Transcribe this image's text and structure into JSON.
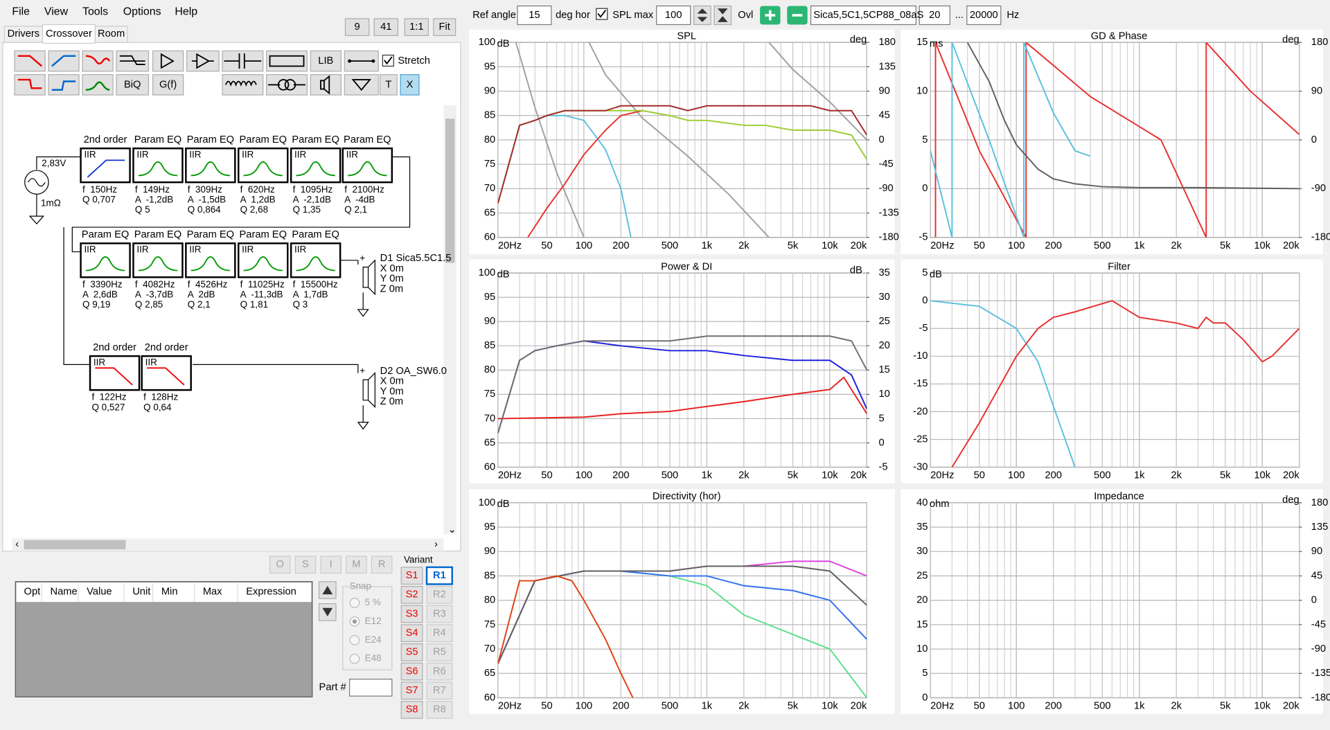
{
  "menu": [
    "File",
    "View",
    "Tools",
    "Options",
    "Help"
  ],
  "tabs": [
    "Drivers",
    "Crossover",
    "Room"
  ],
  "view_buttons": [
    9,
    41,
    "1:1",
    "Fit"
  ],
  "toolbar": {
    "lib": "LIB",
    "biq": "BiQ",
    "gf": "G(f)",
    "t": "T",
    "x": "X",
    "stretch": "Stretch"
  },
  "schematic": {
    "source_voltage": "2,83V",
    "source_resistance": "1mΩ",
    "blocks": [
      {
        "title": "2nd order",
        "type": "IIR",
        "lines": [
          "f  150Hz",
          "Q 0,707"
        ]
      },
      {
        "title": "Param EQ",
        "type": "IIR",
        "lines": [
          "f  149Hz",
          "A  -1,2dB",
          "Q 5"
        ]
      },
      {
        "title": "Param EQ",
        "type": "IIR",
        "lines": [
          "f  309Hz",
          "A  -1,5dB",
          "Q 0,864"
        ]
      },
      {
        "title": "Param EQ",
        "type": "IIR",
        "lines": [
          "f  620Hz",
          "A  1,2dB",
          "Q 2,68"
        ]
      },
      {
        "title": "Param EQ",
        "type": "IIR",
        "lines": [
          "f  1095Hz",
          "A  -2,1dB",
          "Q 1,35"
        ]
      },
      {
        "title": "Param EQ",
        "type": "IIR",
        "lines": [
          "f  2100Hz",
          "A  -4dB",
          "Q 2,1"
        ]
      },
      {
        "title": "Param EQ",
        "type": "IIR",
        "lines": [
          "f  3390Hz",
          "A  2,6dB",
          "Q 9,19"
        ]
      },
      {
        "title": "Param EQ",
        "type": "IIR",
        "lines": [
          "f  4082Hz",
          "A  -3,7dB",
          "Q 2,85"
        ]
      },
      {
        "title": "Param EQ",
        "type": "IIR",
        "lines": [
          "f  4526Hz",
          "A  2dB",
          "Q 2,1"
        ]
      },
      {
        "title": "Param EQ",
        "type": "IIR",
        "lines": [
          "f  11025Hz",
          "A  -11,3dB",
          "Q 1,81"
        ]
      },
      {
        "title": "Param EQ",
        "type": "IIR",
        "lines": [
          "f  15500Hz",
          "A  1,7dB",
          "Q 3"
        ]
      },
      {
        "title": "2nd order",
        "type": "IIR",
        "lines": [
          "f  122Hz",
          "Q 0,527"
        ]
      },
      {
        "title": "2nd order",
        "type": "IIR",
        "lines": [
          "f  128Hz",
          "Q 0,64"
        ]
      }
    ],
    "drivers": [
      {
        "name": "D1 Sica5.5C1.5",
        "lines": [
          "X 0m",
          "Y 0m",
          "Z 0m"
        ]
      },
      {
        "name": "D2 OA_SW6.0",
        "lines": [
          "X 0m",
          "Y 0m",
          "Z 0m"
        ]
      }
    ]
  },
  "nav_buttons": [
    "O",
    "S",
    "I",
    "M",
    "R"
  ],
  "variant": {
    "label": "Variant",
    "s": [
      "S1",
      "S2",
      "S3",
      "S4",
      "S5",
      "S6",
      "S7",
      "S8"
    ],
    "r": [
      "R1",
      "R2",
      "R3",
      "R4",
      "R5",
      "R6",
      "R7",
      "R8"
    ]
  },
  "table_headers": [
    "Opt",
    "Name",
    "Value",
    "Unit",
    "Min",
    "Max",
    "Expression"
  ],
  "snap": {
    "label": "Snap",
    "options": [
      "5 %",
      "E12",
      "E24",
      "E48"
    ]
  },
  "part_label": "Part #",
  "top_bar": {
    "ref_angle_label": "Ref angle",
    "ref_angle": 15,
    "deg_hor": "deg hor",
    "spl_max_label": "SPL max",
    "spl_max": 100,
    "ovl": "Ovl",
    "driver_file": "Sica5,5C1,5CP88_08aS",
    "f_min": 20,
    "ellipsis": "...",
    "f_max": 20000,
    "hz": "Hz"
  },
  "charts": [
    {
      "type": "line",
      "title": "SPL",
      "y_label": "dB",
      "y2_label": "deg",
      "log_x": true,
      "grid": true,
      "xlim": [
        20,
        20000
      ],
      "xticks": [
        {
          "value": 20,
          "label": "20Hz"
        },
        50,
        100,
        200,
        500,
        {
          "value": 1000,
          "label": "1k"
        },
        {
          "value": 2000,
          "label": "2k"
        },
        {
          "value": 5000,
          "label": "5k"
        },
        {
          "value": 10000,
          "label": "10k"
        },
        {
          "value": 20000,
          "label": "20k"
        }
      ],
      "ylim": [
        60,
        100
      ],
      "yticks": [
        60,
        65,
        70,
        75,
        80,
        85,
        90,
        95,
        100
      ],
      "y2lim": [
        -180,
        180
      ],
      "y2ticks": [
        -180,
        -135,
        -90,
        -45,
        0,
        45,
        90,
        135,
        180
      ],
      "series": [
        {
          "color": "#a0a0a0",
          "axis": "y2",
          "x": [
            28,
            40,
            60,
            100
          ],
          "values": [
            180,
            60,
            -60,
            -180
          ]
        },
        {
          "color": "#a0a0a0",
          "axis": "y2",
          "x": [
            110,
            150,
            300,
            700,
            1500,
            3200
          ],
          "values": [
            180,
            120,
            40,
            -30,
            -100,
            -180
          ]
        },
        {
          "color": "#a0a0a0",
          "axis": "y2",
          "x": [
            3200,
            5000,
            10000,
            20000
          ],
          "values": [
            180,
            130,
            70,
            0
          ]
        },
        {
          "color": "#5bc0de",
          "x": [
            20,
            30,
            40,
            50,
            70,
            100,
            150,
            200,
            250
          ],
          "values": [
            67,
            83,
            84,
            85,
            85,
            84,
            78,
            70,
            58
          ]
        },
        {
          "color": "#e83030",
          "x": [
            35,
            50,
            70,
            100,
            150,
            200,
            300
          ],
          "values": [
            60,
            66,
            71,
            77,
            82,
            85,
            86
          ]
        },
        {
          "color": "#9acd32",
          "x": [
            20,
            30,
            40,
            50,
            70,
            100,
            150,
            200,
            300,
            500,
            700,
            1000,
            2000,
            3000,
            5000,
            7000,
            10000,
            15000,
            20000
          ],
          "values": [
            67,
            83,
            84,
            85,
            86,
            86,
            86,
            86,
            86,
            85,
            84,
            84,
            83,
            83,
            82,
            82,
            82,
            81,
            76
          ]
        },
        {
          "color": "#a52a2a",
          "x": [
            20,
            30,
            40,
            50,
            70,
            100,
            150,
            200,
            300,
            500,
            700,
            1000,
            2000,
            3000,
            5000,
            7000,
            10000,
            15000,
            20000
          ],
          "values": [
            67,
            83,
            84,
            85,
            86,
            86,
            86,
            87,
            87,
            87,
            86,
            87,
            87,
            87,
            87,
            87,
            86,
            86,
            81
          ]
        }
      ]
    },
    {
      "type": "line",
      "title": "GD & Phase",
      "y_label": "ms",
      "y2_label": "deg",
      "log_x": true,
      "grid": true,
      "xlim": [
        20,
        20000
      ],
      "xticks": [
        {
          "value": 20,
          "label": "20Hz"
        },
        50,
        100,
        200,
        500,
        {
          "value": 1000,
          "label": "1k"
        },
        {
          "value": 2000,
          "label": "2k"
        },
        {
          "value": 5000,
          "label": "5k"
        },
        {
          "value": 10000,
          "label": "10k"
        },
        {
          "value": 20000,
          "label": "20k"
        }
      ],
      "ylim": [
        -5,
        15
      ],
      "yticks": [
        -5,
        0,
        5,
        10,
        15
      ],
      "y2lim": [
        -180,
        180
      ],
      "y2ticks": [
        -180,
        -90,
        0,
        90,
        180
      ],
      "series": [
        {
          "color": "#e83030",
          "axis": "y2",
          "x": [
            22,
            22,
            50,
            120,
            120,
            400,
            1500,
            3500,
            3500,
            8000,
            20000
          ],
          "values": [
            -180,
            180,
            -20,
            -180,
            180,
            80,
            0,
            -180,
            180,
            90,
            10
          ]
        },
        {
          "color": "#5bc0de",
          "axis": "y2",
          "x": [
            20,
            30,
            30,
            60,
            115,
            115,
            200,
            300,
            400
          ],
          "values": [
            -20,
            -180,
            180,
            0,
            -180,
            180,
            50,
            -20,
            -30
          ]
        },
        {
          "color": "#606060",
          "x": [
            40,
            60,
            80,
            100,
            150,
            200,
            300,
            500,
            1000,
            3000,
            20000
          ],
          "values": [
            15,
            11,
            7,
            4.5,
            2,
            1,
            0.5,
            0.2,
            0.1,
            0.1,
            0
          ]
        }
      ]
    },
    {
      "type": "line",
      "title": "Power & DI",
      "y_label": "dB",
      "y2_label": "dB",
      "log_x": true,
      "grid": true,
      "xlim": [
        20,
        20000
      ],
      "xticks": [
        {
          "value": 20,
          "label": "20Hz"
        },
        50,
        100,
        200,
        500,
        {
          "value": 1000,
          "label": "1k"
        },
        {
          "value": 2000,
          "label": "2k"
        },
        {
          "value": 5000,
          "label": "5k"
        },
        {
          "value": 10000,
          "label": "10k"
        },
        {
          "value": 20000,
          "label": "20k"
        }
      ],
      "ylim": [
        60,
        100
      ],
      "yticks": [
        60,
        65,
        70,
        75,
        80,
        85,
        90,
        95,
        100
      ],
      "y2lim": [
        -5,
        35
      ],
      "y2ticks": [
        -5,
        0,
        5,
        10,
        15,
        20,
        25,
        30,
        35
      ],
      "series": [
        {
          "color": "#e82020",
          "axis": "y2",
          "x": [
            20,
            100,
            200,
            500,
            1000,
            2000,
            5000,
            10000,
            13000,
            15000,
            20000
          ],
          "values": [
            5,
            5.3,
            6,
            6.5,
            7.5,
            8.5,
            10,
            11,
            13.5,
            11,
            6
          ]
        },
        {
          "color": "#2020e0",
          "x": [
            20,
            30,
            40,
            60,
            100,
            200,
            500,
            1000,
            2000,
            5000,
            10000,
            15000,
            20000
          ],
          "values": [
            67,
            82,
            84,
            85,
            86,
            85,
            84,
            84,
            83,
            82,
            82,
            79,
            72
          ]
        },
        {
          "color": "#707070",
          "x": [
            20,
            30,
            40,
            60,
            100,
            200,
            500,
            1000,
            2000,
            5000,
            10000,
            15000,
            20000
          ],
          "values": [
            67,
            82,
            84,
            85,
            86,
            86,
            86,
            87,
            87,
            87,
            87,
            86,
            80
          ]
        }
      ]
    },
    {
      "type": "line",
      "title": "Filter",
      "y_label": "dB",
      "log_x": true,
      "grid": true,
      "xlim": [
        20,
        20000
      ],
      "xticks": [
        {
          "value": 20,
          "label": "20Hz"
        },
        50,
        100,
        200,
        500,
        {
          "value": 1000,
          "label": "1k"
        },
        {
          "value": 2000,
          "label": "2k"
        },
        {
          "value": 5000,
          "label": "5k"
        },
        {
          "value": 10000,
          "label": "10k"
        },
        {
          "value": 20000,
          "label": "20k"
        }
      ],
      "ylim": [
        -30,
        5
      ],
      "yticks": [
        -30,
        -25,
        -20,
        -15,
        -10,
        -5,
        0,
        5
      ],
      "series": [
        {
          "color": "#5bc0de",
          "x": [
            20,
            50,
            100,
            150,
            200,
            300
          ],
          "values": [
            0,
            -1,
            -5,
            -11,
            -19,
            -30
          ]
        },
        {
          "color": "#e83030",
          "x": [
            30,
            50,
            100,
            150,
            200,
            300,
            600,
            1000,
            2000,
            3000,
            3500,
            4000,
            5000,
            7000,
            10000,
            12000,
            20000
          ],
          "values": [
            -30,
            -22,
            -10,
            -5,
            -3,
            -2,
            0,
            -3,
            -4,
            -5,
            -3,
            -4,
            -4,
            -7,
            -11,
            -10,
            -5
          ]
        }
      ]
    },
    {
      "type": "line",
      "title": "Directivity (hor)",
      "y_label": "dB",
      "log_x": true,
      "grid": true,
      "xlim": [
        20,
        20000
      ],
      "xticks": [
        {
          "value": 20,
          "label": "20Hz"
        },
        50,
        100,
        200,
        500,
        {
          "value": 1000,
          "label": "1k"
        },
        {
          "value": 2000,
          "label": "2k"
        },
        {
          "value": 5000,
          "label": "5k"
        },
        {
          "value": 10000,
          "label": "10k"
        },
        {
          "value": 20000,
          "label": "20k"
        }
      ],
      "ylim": [
        60,
        100
      ],
      "yticks": [
        60,
        65,
        70,
        75,
        80,
        85,
        90,
        95,
        100
      ],
      "series": [
        {
          "color": "#5be08a",
          "x": [
            20,
            40,
            100,
            200,
            500,
            1000,
            2000,
            5000,
            10000,
            20000
          ],
          "values": [
            67,
            84,
            86,
            86,
            85,
            83,
            77,
            73,
            70,
            60
          ]
        },
        {
          "color": "#3070f0",
          "x": [
            20,
            40,
            100,
            200,
            500,
            1000,
            2000,
            5000,
            10000,
            20000
          ],
          "values": [
            67,
            84,
            86,
            86,
            85,
            85,
            83,
            82,
            80,
            72
          ]
        },
        {
          "color": "#e040e0",
          "x": [
            20,
            40,
            100,
            200,
            500,
            1000,
            2000,
            5000,
            10000,
            20000
          ],
          "values": [
            67,
            84,
            86,
            86,
            86,
            87,
            87,
            88,
            88,
            85
          ]
        },
        {
          "color": "#606060",
          "x": [
            20,
            40,
            100,
            200,
            500,
            1000,
            2000,
            5000,
            10000,
            20000
          ],
          "values": [
            67,
            84,
            86,
            86,
            86,
            87,
            87,
            87,
            86,
            79
          ]
        },
        {
          "color": "#e04010",
          "x": [
            20,
            30,
            40,
            60,
            80,
            100,
            150,
            200,
            250
          ],
          "values": [
            67,
            84,
            84,
            85,
            84,
            80,
            72,
            65,
            60
          ]
        }
      ]
    },
    {
      "type": "line",
      "title": "Impedance",
      "y_label": "ohm",
      "y2_label": "deg",
      "log_x": true,
      "grid": true,
      "xlim": [
        20,
        20000
      ],
      "xticks": [
        {
          "value": 20,
          "label": "20Hz"
        },
        50,
        100,
        200,
        500,
        {
          "value": 1000,
          "label": "1k"
        },
        {
          "value": 2000,
          "label": "2k"
        },
        {
          "value": 5000,
          "label": "5k"
        },
        {
          "value": 10000,
          "label": "10k"
        },
        {
          "value": 20000,
          "label": "20k"
        }
      ],
      "ylim": [
        0,
        40
      ],
      "yticks": [
        0,
        5,
        10,
        15,
        20,
        25,
        30,
        35,
        40
      ],
      "y2lim": [
        -180,
        180
      ],
      "y2ticks": [
        -180,
        -135,
        -90,
        -45,
        0,
        45,
        90,
        135,
        180
      ],
      "series": []
    }
  ]
}
